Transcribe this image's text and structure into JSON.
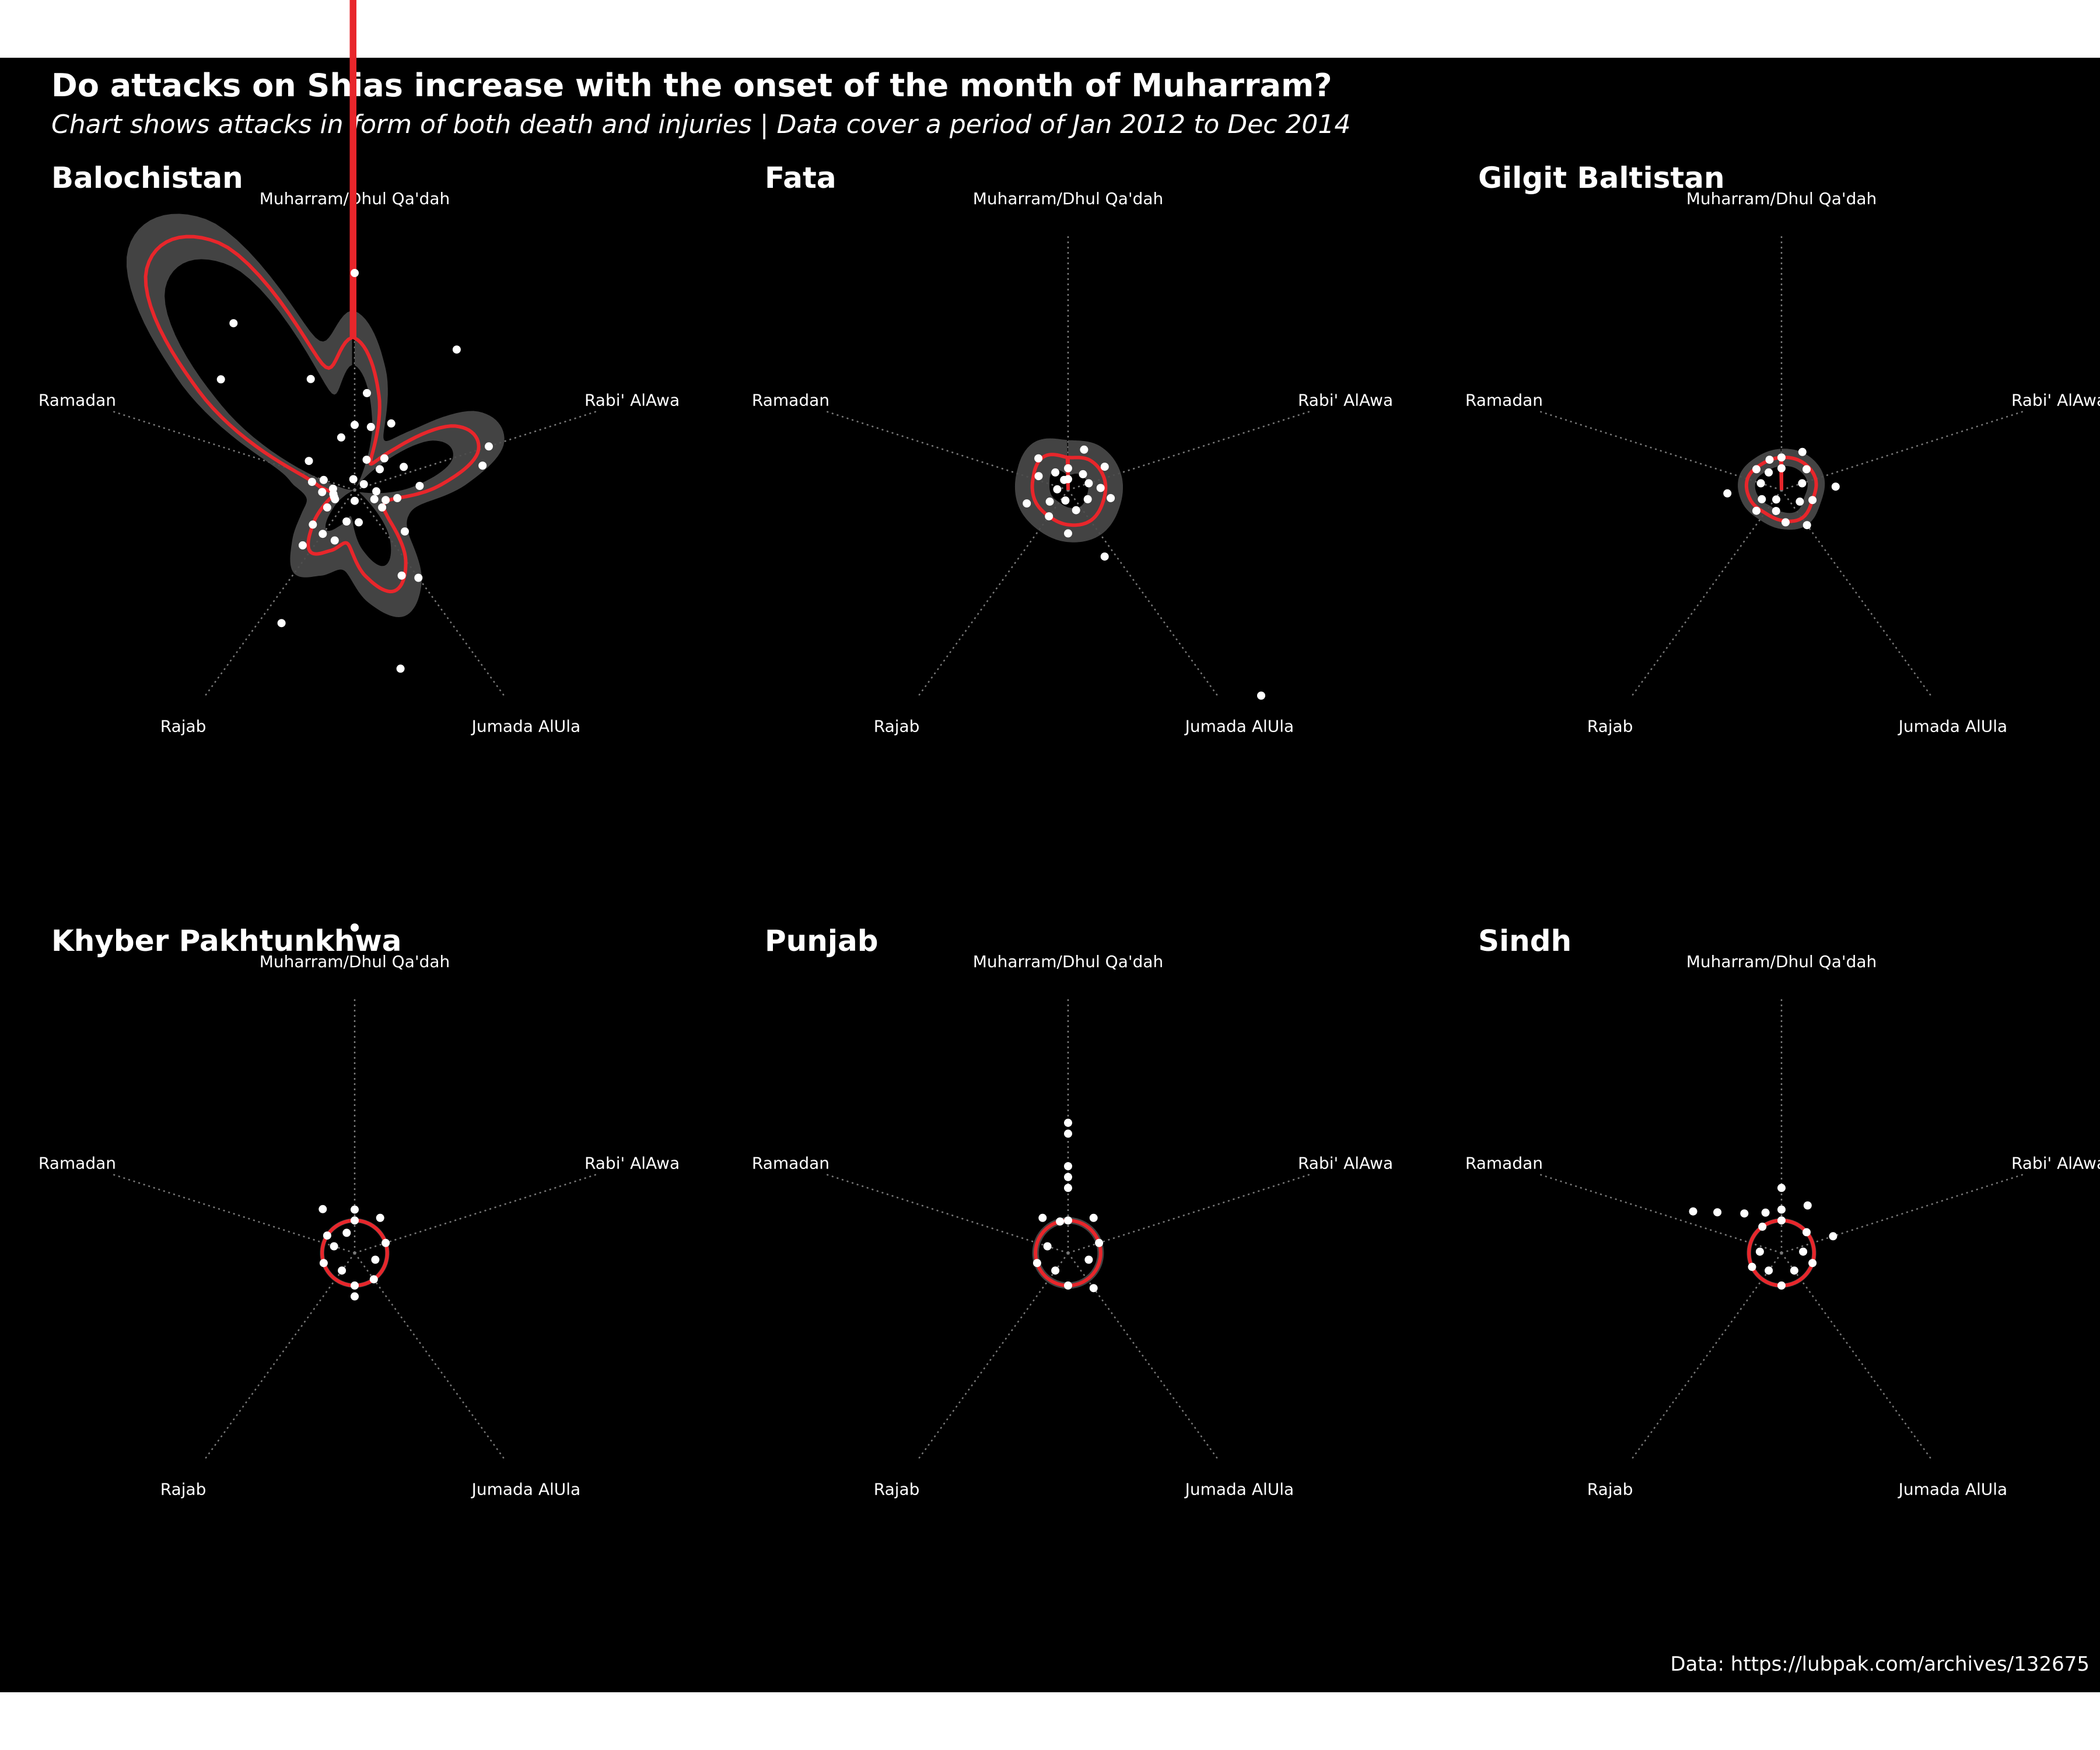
{
  "title": "Do attacks on Shias increase with the onset of the month of Muharram?",
  "subtitle": "Chart shows attacks in form of both death and injuries | Data cover a period of Jan 2012  to Dec 2014",
  "caption": "Data: https://lubpak.com/archives/132675",
  "colors": {
    "background": "#000000",
    "points": "#ffffff",
    "smooth_line": "#e8262b",
    "confidence_band": "#4a4a4a",
    "grid": "#7a7a7a"
  },
  "chart_data": [
    {
      "type": "radar",
      "facet": "Balochistan",
      "axes": [
        "Muharram/Dhul Qa'dah",
        "Rabi' AlAwa",
        "Jumada AlUla",
        "Rajab",
        "Ramadan"
      ],
      "grid": "dotted spokes",
      "points": [
        [
          0,
          140
        ],
        [
          0,
          20
        ],
        [
          0,
          6
        ],
        [
          1,
          9
        ],
        [
          2,
          6
        ],
        [
          3,
          3
        ],
        [
          4,
          7
        ],
        [
          5,
          16
        ],
        [
          6,
          4
        ],
        [
          7,
          3
        ],
        [
          8,
          1
        ],
        [
          9,
          5
        ],
        [
          10,
          13
        ],
        [
          11,
          12
        ],
        [
          12,
          6
        ],
        [
          13,
          2
        ],
        [
          14,
          4
        ],
        [
          15,
          3
        ],
        [
          16,
          2
        ],
        [
          17,
          3
        ],
        [
          18,
          6
        ],
        [
          20,
          10
        ],
        [
          21,
          9
        ],
        [
          23,
          17
        ],
        [
          24,
          3
        ],
        [
          25,
          1
        ],
        [
          27,
          3
        ],
        [
          28,
          5
        ],
        [
          29,
          14
        ],
        [
          30,
          5
        ],
        [
          31,
          7
        ],
        [
          32,
          5
        ],
        [
          33,
          3
        ],
        [
          34,
          2
        ],
        [
          35,
          2
        ],
        [
          36,
          2
        ],
        [
          37,
          3
        ],
        [
          38,
          2
        ],
        [
          39,
          4
        ],
        [
          40,
          3
        ],
        [
          42,
          5
        ],
        [
          43,
          16
        ],
        [
          45,
          19
        ],
        [
          47,
          11
        ],
        [
          48,
          5
        ],
        [
          49,
          1
        ]
      ],
      "smooth": [
        [
          0,
          14
        ],
        [
          2,
          9
        ],
        [
          4,
          3
        ],
        [
          6,
          5
        ],
        [
          8,
          11
        ],
        [
          10,
          12
        ],
        [
          12,
          8
        ],
        [
          14,
          4
        ],
        [
          16,
          3
        ],
        [
          18,
          4
        ],
        [
          20,
          8
        ],
        [
          22,
          10
        ],
        [
          24,
          8
        ],
        [
          26,
          5
        ],
        [
          28,
          6
        ],
        [
          30,
          7
        ],
        [
          32,
          5
        ],
        [
          34,
          3
        ],
        [
          36,
          2
        ],
        [
          38,
          3
        ],
        [
          40,
          6
        ],
        [
          42,
          17
        ],
        [
          44,
          28
        ],
        [
          46,
          26
        ],
        [
          48,
          12
        ],
        [
          50,
          14
        ]
      ],
      "band": 2.5
    },
    {
      "type": "radar",
      "facet": "Fata",
      "axes": [
        "Muharram/Dhul Qa'dah",
        "Rabi' AlAwa",
        "Jumada AlUla",
        "Rajab",
        "Ramadan"
      ],
      "grid": "dotted spokes",
      "points": [
        [
          0,
          2
        ],
        [
          0,
          1
        ],
        [
          3,
          4
        ],
        [
          6,
          2
        ],
        [
          8,
          4
        ],
        [
          10,
          2
        ],
        [
          12,
          3
        ],
        [
          14,
          4
        ],
        [
          16,
          2
        ],
        [
          19,
          26
        ],
        [
          21,
          7
        ],
        [
          22,
          2
        ],
        [
          25,
          4
        ],
        [
          27,
          1
        ],
        [
          30,
          3
        ],
        [
          33,
          2
        ],
        [
          35,
          4
        ],
        [
          38,
          1
        ],
        [
          41,
          3
        ],
        [
          44,
          4
        ],
        [
          45,
          2
        ],
        [
          47,
          1
        ]
      ],
      "smooth": [
        [
          0,
          3
        ],
        [
          5,
          3.4
        ],
        [
          10,
          3.5
        ],
        [
          15,
          3.4
        ],
        [
          20,
          3.5
        ],
        [
          25,
          3.2
        ],
        [
          30,
          3
        ],
        [
          35,
          3.2
        ],
        [
          40,
          3.4
        ],
        [
          45,
          3.8
        ],
        [
          50,
          3
        ]
      ],
      "band": 1.6
    },
    {
      "type": "radar",
      "facet": "Gilgit Baltistan",
      "axes": [
        "Muharram/Dhul Qa'dah",
        "Rabi' AlAwa",
        "Jumada AlUla",
        "Rajab",
        "Ramadan"
      ],
      "grid": "dotted spokes",
      "points": [
        [
          0,
          3
        ],
        [
          0,
          2
        ],
        [
          4,
          4
        ],
        [
          7,
          3
        ],
        [
          10,
          2
        ],
        [
          12,
          5
        ],
        [
          15,
          3
        ],
        [
          17,
          2
        ],
        [
          20,
          4
        ],
        [
          24,
          3
        ],
        [
          27,
          2
        ],
        [
          29,
          1
        ],
        [
          32,
          3
        ],
        [
          34,
          2
        ],
        [
          37,
          5
        ],
        [
          40,
          2
        ],
        [
          43,
          3
        ],
        [
          45,
          2
        ],
        [
          47,
          3
        ]
      ],
      "smooth": [
        [
          0,
          3
        ],
        [
          5,
          3.2
        ],
        [
          10,
          3.3
        ],
        [
          15,
          3
        ],
        [
          20,
          3.2
        ],
        [
          25,
          2.8
        ],
        [
          30,
          2.6
        ],
        [
          35,
          3
        ],
        [
          40,
          3.3
        ],
        [
          45,
          3
        ],
        [
          50,
          3
        ]
      ],
      "band": 0.8
    },
    {
      "type": "radar",
      "facet": "Khyber Pakhtunkhwa",
      "axes": [
        "Muharram/Dhul Qa'dah",
        "Rabi' AlAwa",
        "Jumada AlUla",
        "Rajab",
        "Ramadan"
      ],
      "grid": "dotted spokes",
      "points": [
        [
          0,
          30
        ],
        [
          0,
          4
        ],
        [
          0,
          3
        ],
        [
          5,
          4
        ],
        [
          10,
          3
        ],
        [
          15,
          2
        ],
        [
          20,
          3
        ],
        [
          25,
          4
        ],
        [
          25,
          3
        ],
        [
          30,
          2
        ],
        [
          35,
          3
        ],
        [
          40,
          2
        ],
        [
          42,
          3
        ],
        [
          45,
          5
        ],
        [
          47,
          2
        ]
      ],
      "smooth": [
        [
          0,
          3
        ],
        [
          10,
          3
        ],
        [
          20,
          3
        ],
        [
          30,
          3
        ],
        [
          40,
          3
        ],
        [
          50,
          3
        ]
      ],
      "band": 0.2
    },
    {
      "type": "radar",
      "facet": "Punjab",
      "axes": [
        "Muharram/Dhul Qa'dah",
        "Rabi' AlAwa",
        "Jumada AlUla",
        "Rajab",
        "Ramadan"
      ],
      "grid": "dotted spokes",
      "points": [
        [
          0,
          12
        ],
        [
          0,
          11
        ],
        [
          0,
          8
        ],
        [
          0,
          7
        ],
        [
          0,
          6
        ],
        [
          0,
          3
        ],
        [
          5,
          4
        ],
        [
          10,
          3
        ],
        [
          15,
          2
        ],
        [
          20,
          4
        ],
        [
          25,
          3
        ],
        [
          30,
          2
        ],
        [
          35,
          3
        ],
        [
          40,
          2
        ],
        [
          45,
          4
        ],
        [
          48,
          3
        ]
      ],
      "smooth": [
        [
          0,
          3
        ],
        [
          10,
          3
        ],
        [
          20,
          3
        ],
        [
          30,
          3
        ],
        [
          40,
          3
        ],
        [
          50,
          3
        ]
      ],
      "band": 0.3
    },
    {
      "type": "radar",
      "facet": "Sindh",
      "axes": [
        "Muharram/Dhul Qa'dah",
        "Rabi' AlAwa",
        "Jumada AlUla",
        "Rajab",
        "Ramadan"
      ],
      "grid": "dotted spokes",
      "points": [
        [
          0,
          6
        ],
        [
          0,
          4
        ],
        [
          0,
          3
        ],
        [
          4,
          5
        ],
        [
          7,
          3
        ],
        [
          10,
          5
        ],
        [
          12,
          2
        ],
        [
          15,
          3
        ],
        [
          20,
          2
        ],
        [
          25,
          3
        ],
        [
          30,
          2
        ],
        [
          34,
          3
        ],
        [
          38,
          2
        ],
        [
          41,
          9
        ],
        [
          42,
          7
        ],
        [
          44,
          5
        ],
        [
          45,
          3
        ],
        [
          47,
          4
        ]
      ],
      "smooth": [
        [
          0,
          3
        ],
        [
          10,
          3
        ],
        [
          20,
          3
        ],
        [
          30,
          3
        ],
        [
          40,
          3
        ],
        [
          50,
          3
        ]
      ],
      "band": 0.2
    }
  ]
}
